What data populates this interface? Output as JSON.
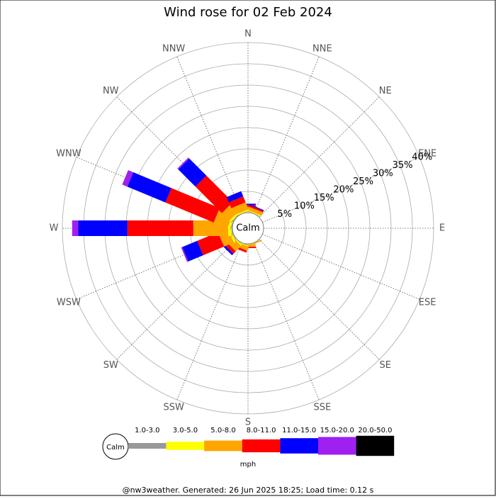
{
  "chart_data": {
    "type": "windrose",
    "title": "Wind rose for 02 Feb 2024",
    "directions": [
      "N",
      "NNE",
      "NE",
      "ENE",
      "E",
      "ESE",
      "SE",
      "SSE",
      "S",
      "SSW",
      "SW",
      "WSW",
      "W",
      "WNW",
      "NW",
      "NNW"
    ],
    "rlim": [
      0,
      40
    ],
    "rticks": [
      {
        "value": 5,
        "label": "5%"
      },
      {
        "value": 10,
        "label": "10%"
      },
      {
        "value": 15,
        "label": "15%"
      },
      {
        "value": 20,
        "label": "20%"
      },
      {
        "value": 25,
        "label": "25%"
      },
      {
        "value": 30,
        "label": "30%"
      },
      {
        "value": 35,
        "label": "35%"
      },
      {
        "value": 40,
        "label": "40%"
      }
    ],
    "calm_label": "Calm",
    "unit_label": "mph",
    "series": [
      {
        "name": "1.0-3.0",
        "color": "#999999",
        "values": [
          0.1,
          0.1,
          0,
          0,
          0,
          0,
          0,
          0,
          0.1,
          0.1,
          0.1,
          0.2,
          0.2,
          0.2,
          0.2,
          0.1
        ]
      },
      {
        "name": "3.0-5.0",
        "color": "#ffff00",
        "values": [
          0.2,
          0.2,
          0,
          0,
          0,
          0,
          0,
          0,
          0.1,
          0.2,
          0.3,
          0.5,
          0.8,
          0.6,
          0.5,
          0.3
        ]
      },
      {
        "name": "5.0-8.0",
        "color": "#ffa500",
        "values": [
          1.0,
          0.8,
          0,
          0,
          0,
          0,
          0,
          0.3,
          0.5,
          1.0,
          1.8,
          2.5,
          8.2,
          3.5,
          2.5,
          1.8
        ]
      },
      {
        "name": "8.0-11.0",
        "color": "#ff0000",
        "values": [
          0.5,
          0.4,
          0,
          0,
          0,
          0,
          0,
          0,
          0.3,
          0.5,
          0.8,
          5.3,
          15.5,
          12.3,
          8.8,
          1.5
        ]
      },
      {
        "name": "11.0-15.0",
        "color": "#0000ff",
        "values": [
          0.3,
          0.2,
          0,
          0,
          0,
          0,
          0,
          0,
          0,
          0,
          0.5,
          3.8,
          11.6,
          9.7,
          5.7,
          1.3
        ]
      },
      {
        "name": "15.0-20.0",
        "color": "#a020f0",
        "values": [
          0,
          0,
          0,
          0,
          0,
          0,
          0,
          0,
          0,
          0,
          0,
          0.3,
          1.4,
          1.3,
          0.3,
          0
        ]
      },
      {
        "name": "20.0-50.0",
        "color": "#000000",
        "values": [
          0,
          0,
          0,
          0,
          0,
          0,
          0,
          0,
          0,
          0,
          0,
          0,
          0,
          0,
          0,
          0
        ]
      }
    ],
    "footer": "@nw3weather. Generated: 26 Jun 2025 18:25; Load time: 0.12 s"
  }
}
